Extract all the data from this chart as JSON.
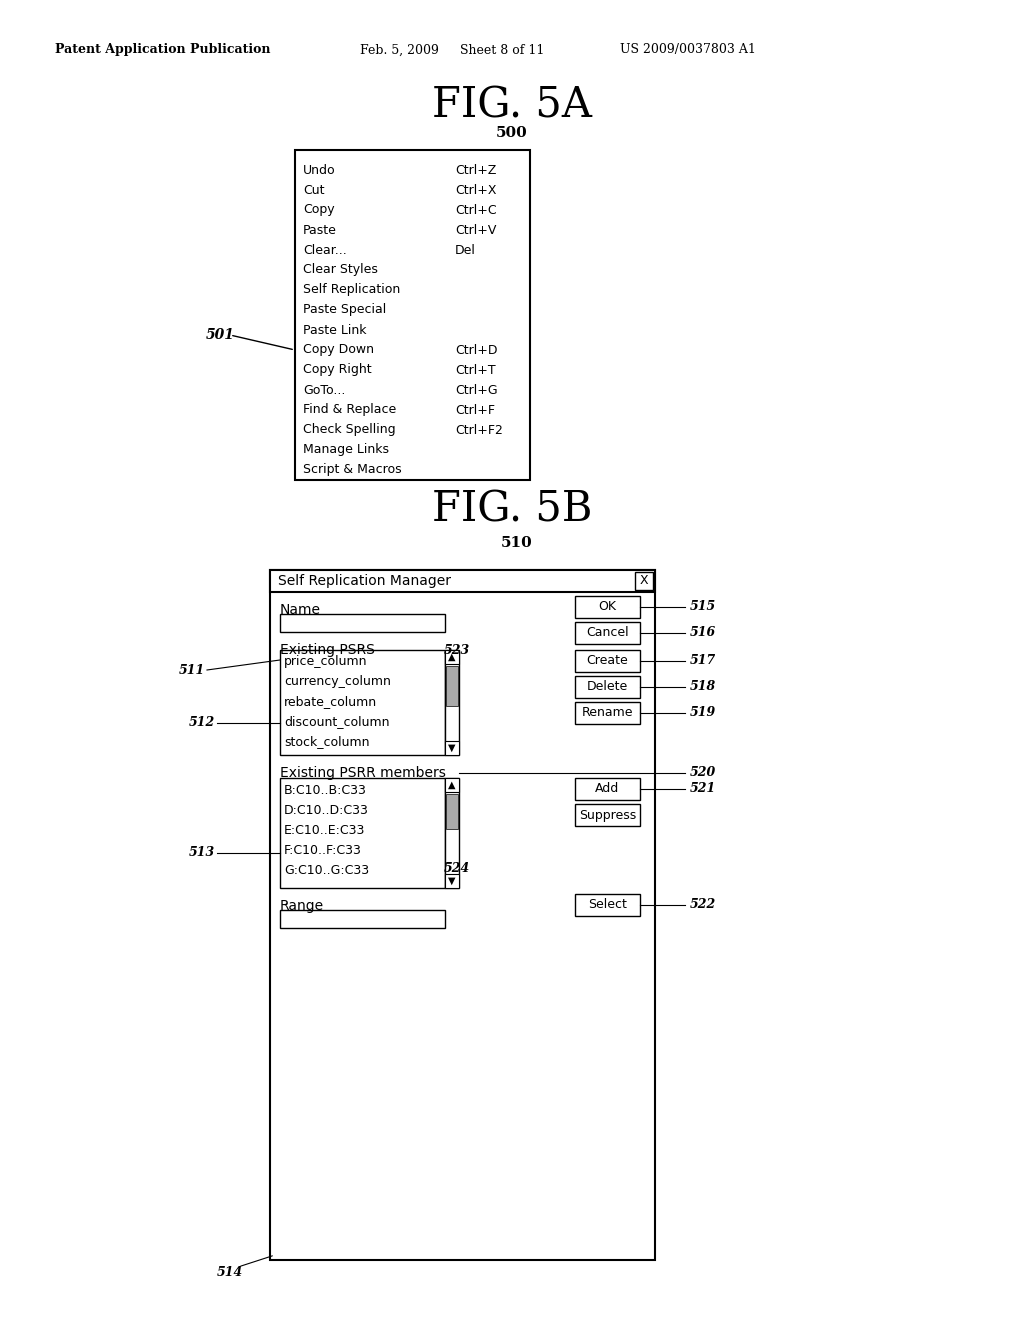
{
  "bg_color": "#ffffff",
  "header_text": "Patent Application Publication",
  "header_date": "Feb. 5, 2009",
  "header_sheet": "Sheet 8 of 11",
  "header_patent": "US 2009/0037803 A1",
  "fig5a_title": "FIG. 5A",
  "fig5a_label": "500",
  "fig5b_title": "FIG. 5B",
  "fig5b_label": "510",
  "menu_items": [
    [
      "Undo",
      "Ctrl+Z"
    ],
    [
      "Cut",
      "Ctrl+X"
    ],
    [
      "Copy",
      "Ctrl+C"
    ],
    [
      "Paste",
      "Ctrl+V"
    ],
    [
      "Clear...",
      "Del"
    ],
    [
      "Clear Styles",
      ""
    ],
    [
      "Self Replication",
      ""
    ],
    [
      "Paste Special",
      ""
    ],
    [
      "Paste Link",
      ""
    ],
    [
      "Copy Down",
      "Ctrl+D"
    ],
    [
      "Copy Right",
      "Ctrl+T"
    ],
    [
      "GoTo...",
      "Ctrl+G"
    ],
    [
      "Find & Replace",
      "Ctrl+F"
    ],
    [
      "Check Spelling",
      "Ctrl+F2"
    ],
    [
      "Manage Links",
      ""
    ],
    [
      "Script & Macros",
      ""
    ]
  ],
  "label_501": "501",
  "label_511": "511",
  "label_512": "512",
  "label_513": "513",
  "label_514": "514",
  "label_515": "515",
  "label_516": "516",
  "label_517": "517",
  "label_518": "518",
  "label_519": "519",
  "label_520": "520",
  "label_521": "521",
  "label_522": "522",
  "label_523": "523",
  "label_524": "524",
  "dialog_title": "Self Replication Manager",
  "dialog_x": "X",
  "name_label": "Name",
  "existing_psrs_label": "Existing PSRS",
  "psrs_items": [
    "price_column",
    "currency_column",
    "rebate_column",
    "discount_column",
    "stock_column"
  ],
  "existing_psrr_label": "Existing PSRR members",
  "psrr_items": [
    "B:C10..B:C33",
    "D:C10..D:C33",
    "E:C10..E:C33",
    "F:C10..F:C33",
    "G:C10..G:C33"
  ],
  "range_label": "Range",
  "btn_ok": "OK",
  "btn_cancel": "Cancel",
  "btn_create": "Create",
  "btn_delete": "Delete",
  "btn_rename": "Rename",
  "btn_add": "Add",
  "btn_suppress": "Suppress",
  "btn_select": "Select"
}
